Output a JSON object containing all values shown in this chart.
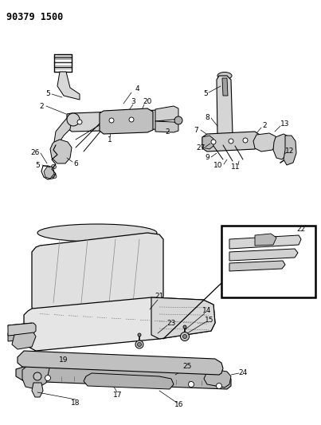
{
  "title": "90379 1500",
  "bg_color": "#ffffff",
  "line_color": "#000000",
  "gray_fill": "#e8e8e8",
  "mid_gray": "#c8c8c8",
  "dark_line": "#1a1a1a",
  "title_fontsize": 8.5,
  "label_fontsize": 6.0,
  "figsize": [
    4.03,
    5.33
  ],
  "dpi": 100
}
